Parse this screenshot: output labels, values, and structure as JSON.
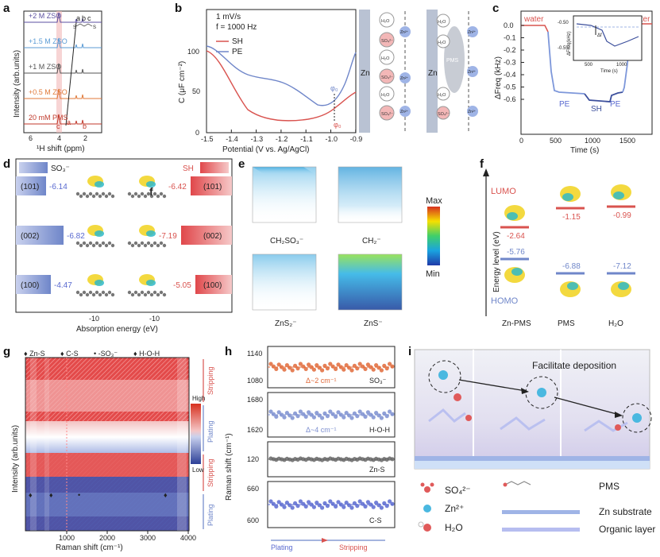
{
  "panels": {
    "a": {
      "label": "a",
      "traces": [
        {
          "label": "+2 M ZSO",
          "color": "#5b4fa0"
        },
        {
          "label": "+1.5 M ZSO",
          "color": "#5b9bd5"
        },
        {
          "label": "+1 M ZSO",
          "color": "#555555"
        },
        {
          "label": "+0.5 M ZSO",
          "color": "#e07a3a"
        },
        {
          "label": "20 mM PMS",
          "color": "#c0392b"
        }
      ],
      "peak_letters": [
        "a",
        "b",
        "c"
      ],
      "trace_peaks": [
        "c",
        "a",
        "b"
      ],
      "xlabel": "¹H shift (ppm)",
      "ylabel": "Intensity (arb.units)",
      "xticks": [
        "6",
        "4",
        "2"
      ]
    },
    "b": {
      "label": "b",
      "notes": [
        "1 mV/s",
        "f = 1000 Hz"
      ],
      "legend": [
        "SH",
        "PE"
      ],
      "ylabel": "C (μF cm⁻²)",
      "xlabel": "Potential (V vs. Ag/AgCl)",
      "xticks": [
        "-1.5",
        "-1.4",
        "-1.3",
        "-1.2",
        "-1.1",
        "-1.0",
        "-0.9"
      ],
      "yticks": [
        "0",
        "50",
        "100"
      ],
      "phi": "φ₀",
      "schematic": {
        "zn": "Zn",
        "pms": "PMS",
        "so4": "SO₄²⁻",
        "h2o": "H₂O",
        "zn2": "Zn²⁺"
      }
    },
    "c": {
      "label": "c",
      "water_left": "water",
      "water_right": "water",
      "ylabel": "ΔFreq (kHz)",
      "xlabel": "Time (s)",
      "yticks": [
        "0.0",
        "-0.1",
        "-0.2",
        "-0.3",
        "-0.4",
        "-0.5",
        "-0.6"
      ],
      "xticks": [
        "0",
        "500",
        "1000",
        "1500"
      ],
      "segments": [
        "PE",
        "SH",
        "PE"
      ],
      "inset": {
        "ylabel": "ΔFreq(kHz)",
        "xlabel": "Time (s)",
        "yticks": [
          "-0.50",
          "-0.55"
        ],
        "xticks": [
          "500",
          "1000"
        ],
        "delta": "Δf"
      }
    },
    "d": {
      "label": "d",
      "legend_left": "SO₃⁻",
      "legend_right": "SH",
      "rows": [
        {
          "facet": "(101)",
          "so3": "-6.14",
          "sh": "-6.42"
        },
        {
          "facet": "(002)",
          "so3": "-6.82",
          "sh": "-7.19"
        },
        {
          "facet": "(100)",
          "so3": "-4.47",
          "sh": "-5.05"
        }
      ],
      "xticks": [
        "-10",
        "-10"
      ],
      "xlabel": "Absorption energy (eV)",
      "stray_label": "f"
    },
    "e": {
      "label": "e",
      "boxes": [
        "CH₂SO₃⁻",
        "CH₂⁻",
        "ZnS₂⁻",
        "ZnS⁻"
      ],
      "colorbar_max": "Max",
      "colorbar_min": "Min"
    },
    "f": {
      "label": "f",
      "lumo": "LUMO",
      "homo": "HOMO",
      "ylabel": "Energy level (eV)",
      "columns": [
        {
          "name": "Zn-PMS",
          "lumo": "-2.64",
          "homo": "-5.76"
        },
        {
          "name": "PMS",
          "lumo": "-1.15",
          "homo": "-6.88"
        },
        {
          "name": "H₂O",
          "lumo": "-0.99",
          "homo": "-7.12"
        }
      ]
    },
    "g": {
      "label": "g",
      "legend": [
        "♦ Zn-S",
        "♦ C-S",
        "• -SO₃⁻",
        "♦ H-O-H"
      ],
      "ylabel": "Intensity (arb.units)",
      "xlabel": "Raman shift (cm⁻¹)",
      "xticks": [
        "1000",
        "2000",
        "3000",
        "4000"
      ],
      "scale_high": "High",
      "scale_low": "Low",
      "bands": [
        "Stripping",
        "Plating",
        "Stripping",
        "Plating"
      ]
    },
    "h": {
      "label": "h",
      "ylabel": "Raman shift (cm⁻¹)",
      "subpanels": [
        {
          "name": "SO₃⁻",
          "ticks": [
            "1140",
            "1080"
          ],
          "delta": "Δ~2 cm⁻¹",
          "color": "#e06a3a"
        },
        {
          "name": "H-O-H",
          "ticks": [
            "1680",
            "1620"
          ],
          "delta": "Δ~4 cm⁻¹",
          "color": "#7d8fd0"
        },
        {
          "name": "Zn-S",
          "ticks": [
            "120"
          ],
          "delta": "",
          "color": "#666666"
        },
        {
          "name": "C-S",
          "ticks": [
            "660",
            "600"
          ],
          "delta": "",
          "color": "#5a6ad0"
        }
      ],
      "bottom_left": "Plating",
      "bottom_right": "Stripping"
    },
    "i": {
      "label": "i",
      "caption": "Facilitate deposition",
      "legend": {
        "so4": "SO₄²⁻",
        "zn": "Zn²⁺",
        "h2o": "H₂O",
        "pms": "PMS",
        "substrate": "Zn substrate",
        "organic": "Organic layer"
      }
    }
  },
  "colors": {
    "red": "#d9534f",
    "blue": "#6f86c9",
    "lightblue": "#9fb4e6",
    "grey": "#c7ccd6"
  }
}
